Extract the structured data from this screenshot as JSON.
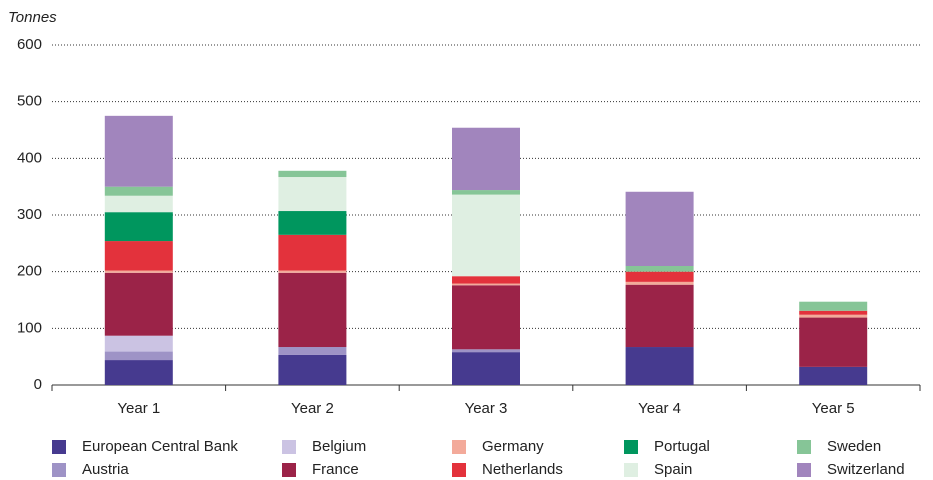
{
  "chart_data": {
    "type": "stacked_bar",
    "y_label": "Tonnes",
    "categories": [
      "Year 1",
      "Year 2",
      "Year 3",
      "Year 4",
      "Year 5"
    ],
    "series": [
      {
        "name": "European Central Bank",
        "color": "#463a8f",
        "values": [
          44,
          53,
          58,
          67,
          32
        ]
      },
      {
        "name": "Austria",
        "color": "#9e93c6",
        "values": [
          15,
          14,
          5,
          0,
          0
        ]
      },
      {
        "name": "Belgium",
        "color": "#cbc3e3",
        "values": [
          28,
          0,
          0,
          0,
          0
        ]
      },
      {
        "name": "France",
        "color": "#9b2348",
        "values": [
          111,
          131,
          113,
          110,
          87
        ]
      },
      {
        "name": "Germany",
        "color": "#f3aa9a",
        "values": [
          4,
          4,
          3,
          5,
          5
        ]
      },
      {
        "name": "Netherlands",
        "color": "#e3323c",
        "values": [
          52,
          63,
          13,
          18,
          7
        ]
      },
      {
        "name": "Portugal",
        "color": "#00965e",
        "values": [
          51,
          42,
          0,
          0,
          0
        ]
      },
      {
        "name": "Spain",
        "color": "#dfefe2",
        "values": [
          29,
          60,
          144,
          0,
          0
        ]
      },
      {
        "name": "Sweden",
        "color": "#86c597",
        "values": [
          16,
          11,
          8,
          10,
          16
        ]
      },
      {
        "name": "Switzerland",
        "color": "#a185bd",
        "values": [
          125,
          0,
          110,
          131,
          0
        ]
      }
    ],
    "ylim": [
      0,
      600
    ],
    "yticks": [
      0,
      100,
      200,
      300,
      400,
      500,
      600
    ],
    "grid": true
  }
}
